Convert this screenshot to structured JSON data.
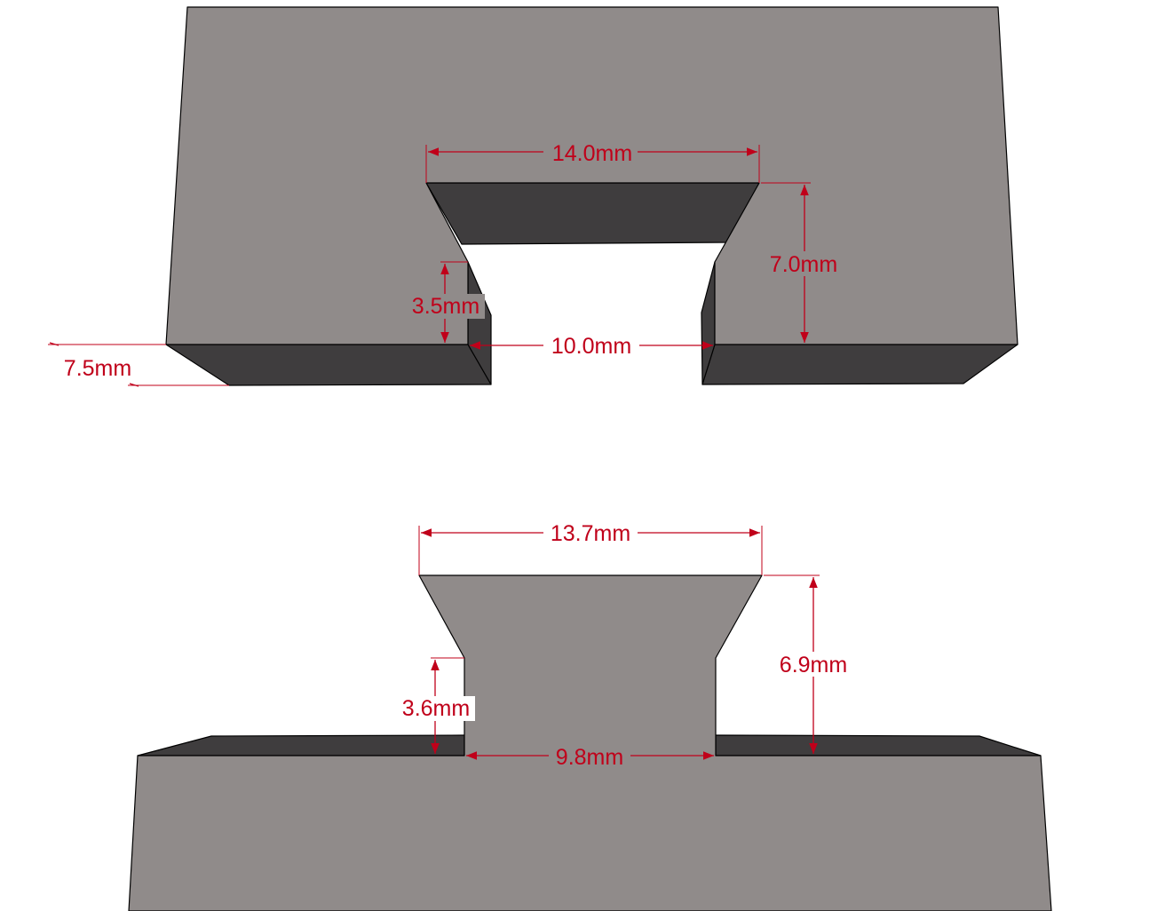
{
  "colors": {
    "top_face": "#908b8a",
    "side_face": "#3f3d3e",
    "dimension": "#c0001a",
    "background": "#ffffff"
  },
  "slot_block": {
    "top_width": "14.0mm",
    "slot_height": "7.0mm",
    "neck_height": "3.5mm",
    "bottom_width": "10.0mm",
    "thickness": "7.5mm"
  },
  "tenon_block": {
    "top_width": "13.7mm",
    "tenon_height": "6.9mm",
    "neck_height": "3.6mm",
    "bottom_width": "9.8mm"
  }
}
